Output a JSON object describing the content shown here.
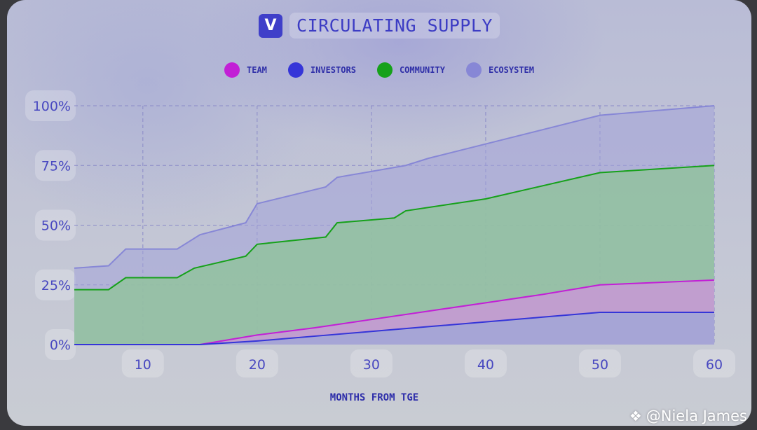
{
  "header": {
    "logo_letter": "V",
    "title": "CIRCULATING SUPPLY"
  },
  "watermark": {
    "icon": "diamond-logo-icon",
    "text": "@Niela James"
  },
  "colors": {
    "team": "#c21fd6",
    "investors": "#3535d8",
    "community": "#16a11a",
    "ecosystem": "#8787d6"
  },
  "chart_data": {
    "type": "area",
    "stacked": true,
    "title": "CIRCULATING SUPPLY",
    "xlabel": "MONTHS FROM TGE",
    "ylabel": "",
    "xlim": [
      4,
      60
    ],
    "ylim": [
      0,
      100
    ],
    "x_ticks": [
      10,
      20,
      30,
      40,
      50,
      60
    ],
    "x_tick_labels": [
      "10",
      "20",
      "30",
      "40",
      "50",
      "60"
    ],
    "y_ticks": [
      0,
      25,
      50,
      75,
      100
    ],
    "y_tick_labels": [
      "0%",
      "25%",
      "50%",
      "75%",
      "100%"
    ],
    "grid": true,
    "legend_position": "top-center",
    "series": [
      {
        "name": "TEAM",
        "key": "team",
        "points": [
          [
            4,
            0
          ],
          [
            15,
            0
          ],
          [
            20,
            4
          ],
          [
            25,
            7
          ],
          [
            30,
            10.5
          ],
          [
            35,
            14
          ],
          [
            40,
            17.5
          ],
          [
            45,
            21
          ],
          [
            50,
            25
          ],
          [
            55,
            26
          ],
          [
            60,
            27
          ]
        ]
      },
      {
        "name": "INVESTORS",
        "key": "investors",
        "points": [
          [
            4,
            0
          ],
          [
            15,
            0
          ],
          [
            20,
            1.5
          ],
          [
            25,
            3.5
          ],
          [
            30,
            5.5
          ],
          [
            35,
            7.5
          ],
          [
            40,
            9.5
          ],
          [
            45,
            11.5
          ],
          [
            50,
            13.5
          ],
          [
            55,
            13.5
          ],
          [
            60,
            13.5
          ]
        ]
      },
      {
        "name": "COMMUNITY",
        "key": "community",
        "points": [
          [
            4,
            23
          ],
          [
            7,
            23
          ],
          [
            8.5,
            28
          ],
          [
            13,
            28
          ],
          [
            14.5,
            32
          ],
          [
            19,
            37
          ],
          [
            20,
            42
          ],
          [
            26,
            45
          ],
          [
            27,
            51
          ],
          [
            32,
            53
          ],
          [
            33,
            56
          ],
          [
            40,
            61
          ],
          [
            50,
            72
          ],
          [
            60,
            75
          ]
        ]
      },
      {
        "name": "ECOSYSTEM",
        "key": "ecosystem",
        "points": [
          [
            4,
            32
          ],
          [
            7,
            33
          ],
          [
            8.5,
            40
          ],
          [
            13,
            40
          ],
          [
            15,
            46
          ],
          [
            19,
            51
          ],
          [
            20,
            59
          ],
          [
            26,
            66
          ],
          [
            27,
            70
          ],
          [
            33,
            75
          ],
          [
            35,
            78
          ],
          [
            40,
            84
          ],
          [
            50,
            96
          ],
          [
            60,
            100
          ]
        ]
      }
    ]
  }
}
